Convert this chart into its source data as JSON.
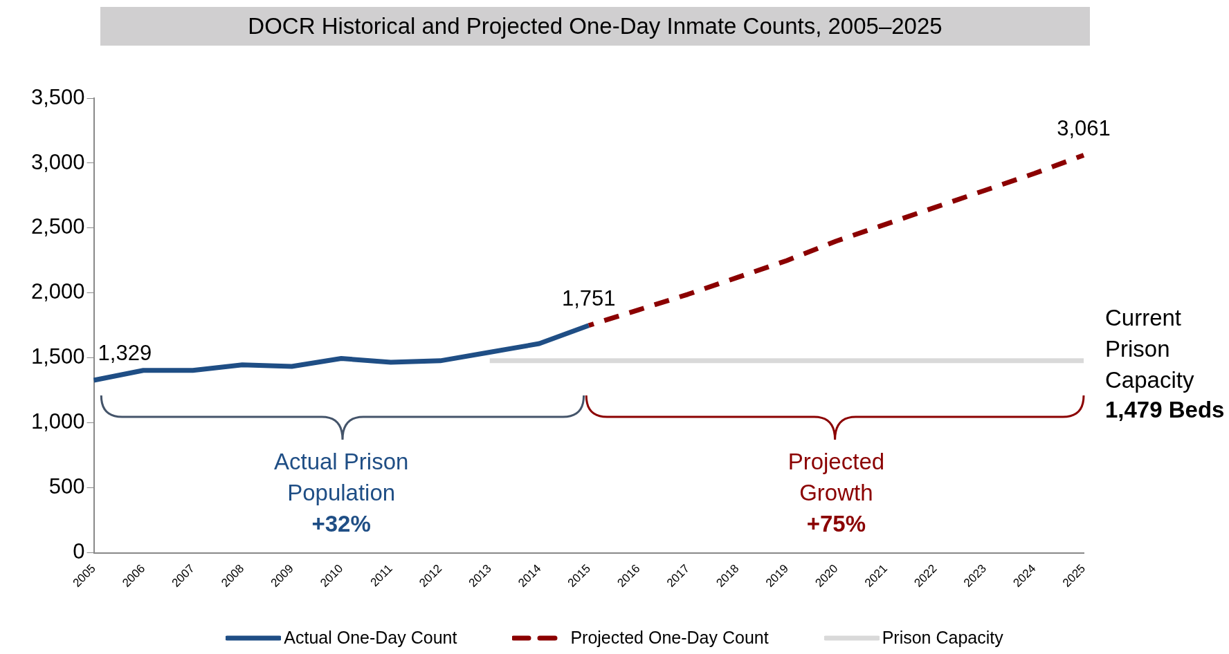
{
  "chart_data": {
    "type": "line",
    "title": "DOCR Historical and Projected One-Day Inmate Counts, 2005–2025",
    "categories": [
      "2005",
      "2006",
      "2007",
      "2008",
      "2009",
      "2010",
      "2011",
      "2012",
      "2013",
      "2014",
      "2015",
      "2016",
      "2017",
      "2018",
      "2019",
      "2020",
      "2021",
      "2022",
      "2023",
      "2024",
      "2025"
    ],
    "series": [
      {
        "name": "Actual One-Day Count",
        "color": "#1f4e85",
        "line_style": "solid",
        "values": [
          1329,
          1405,
          1405,
          1448,
          1436,
          1497,
          1467,
          1479,
          1545,
          1611,
          1751,
          null,
          null,
          null,
          null,
          null,
          null,
          null,
          null,
          null,
          null
        ],
        "value_labels": [
          "1,329",
          null,
          null,
          null,
          null,
          null,
          null,
          null,
          null,
          null,
          "1,751",
          null,
          null,
          null,
          null,
          null,
          null,
          null,
          null,
          null,
          null
        ]
      },
      {
        "name": "Projected One-Day Count",
        "color": "#8b0000",
        "line_style": "dashed",
        "values": [
          null,
          null,
          null,
          null,
          null,
          null,
          null,
          null,
          null,
          null,
          1751,
          1870,
          1990,
          2120,
          2250,
          2400,
          2530,
          2660,
          2790,
          2920,
          3061
        ],
        "value_labels": [
          null,
          null,
          null,
          null,
          null,
          null,
          null,
          null,
          null,
          null,
          null,
          null,
          null,
          null,
          null,
          null,
          null,
          null,
          null,
          null,
          "3,061"
        ]
      },
      {
        "name": "Prison Capacity",
        "color": "#d9d9d9",
        "line_style": "solid",
        "values": [
          null,
          null,
          null,
          null,
          null,
          null,
          null,
          null,
          1479,
          1479,
          1479,
          1479,
          1479,
          1479,
          1479,
          1479,
          1479,
          1479,
          1479,
          1479,
          1479
        ]
      }
    ],
    "ylim": [
      0,
      3500
    ],
    "yticks": [
      0,
      500,
      {
        "value": 1000,
        "label": "1,000"
      },
      {
        "value": 1500,
        "label": "1,500"
      },
      {
        "value": 2000,
        "label": "2,000"
      },
      {
        "value": 2500,
        "label": "2,500"
      },
      {
        "value": 3000,
        "label": "3,000"
      },
      {
        "value": 3500,
        "label": "3,500"
      }
    ],
    "grid": false,
    "legend": "bottom",
    "marker": "none",
    "annotations": [
      "Actual Prison Population",
      "+32%",
      "Projected Growth",
      "+75%",
      {
        "text": "Current Prison Capacity",
        "x": "2025",
        "y": 1479
      },
      {
        "text": "1,479 Beds",
        "x": "2025",
        "y": 1479
      }
    ]
  }
}
